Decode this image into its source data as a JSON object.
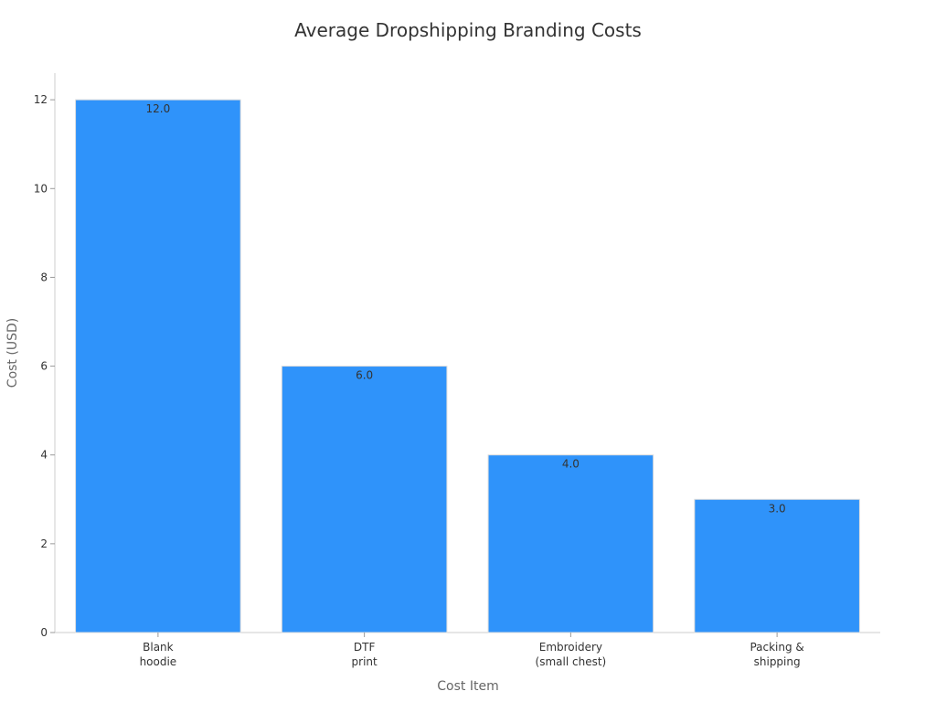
{
  "chart_data": {
    "type": "bar",
    "title": "Average Dropshipping Branding Costs",
    "xlabel": "Cost Item",
    "ylabel": "Cost (USD)",
    "categories": [
      [
        "Blank",
        "hoodie"
      ],
      [
        "DTF",
        "print"
      ],
      [
        "Embroidery",
        "(small chest)"
      ],
      [
        "Packing &",
        "shipping"
      ]
    ],
    "values": [
      12.0,
      6.0,
      4.0,
      3.0
    ],
    "value_labels": [
      "12.0",
      "6.0",
      "4.0",
      "3.0"
    ],
    "ylim": [
      0,
      12.6
    ],
    "yticks": [
      0,
      2,
      4,
      6,
      8,
      10,
      12
    ],
    "grid": false,
    "colors": {
      "bar": "#2f93fa",
      "bar_edge": "#dddddd"
    }
  }
}
